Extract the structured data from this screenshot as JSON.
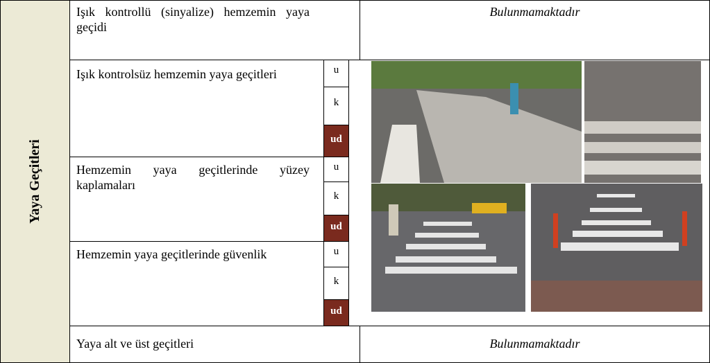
{
  "row_header": "Yaya Geçitleri",
  "rows": [
    {
      "label": "Işık kontrollü (sinyalize) hemzemin yaya geçidi",
      "status": "Bulunmamaktadır"
    },
    {
      "label": "Işık kontrolsüz hemzemin yaya geçitleri",
      "options": [
        "u",
        "k",
        "ud"
      ]
    },
    {
      "label": "Hemzemin yaya geçitlerinde yüzey kaplamaları",
      "options": [
        "u",
        "k",
        "ud"
      ]
    },
    {
      "label": "Hemzemin yaya geçitlerinde güvenlik",
      "options": [
        "u",
        "k",
        "ud"
      ]
    },
    {
      "label": "Yaya alt ve üst geçitleri",
      "status": "Bulunmamaktadır"
    }
  ]
}
